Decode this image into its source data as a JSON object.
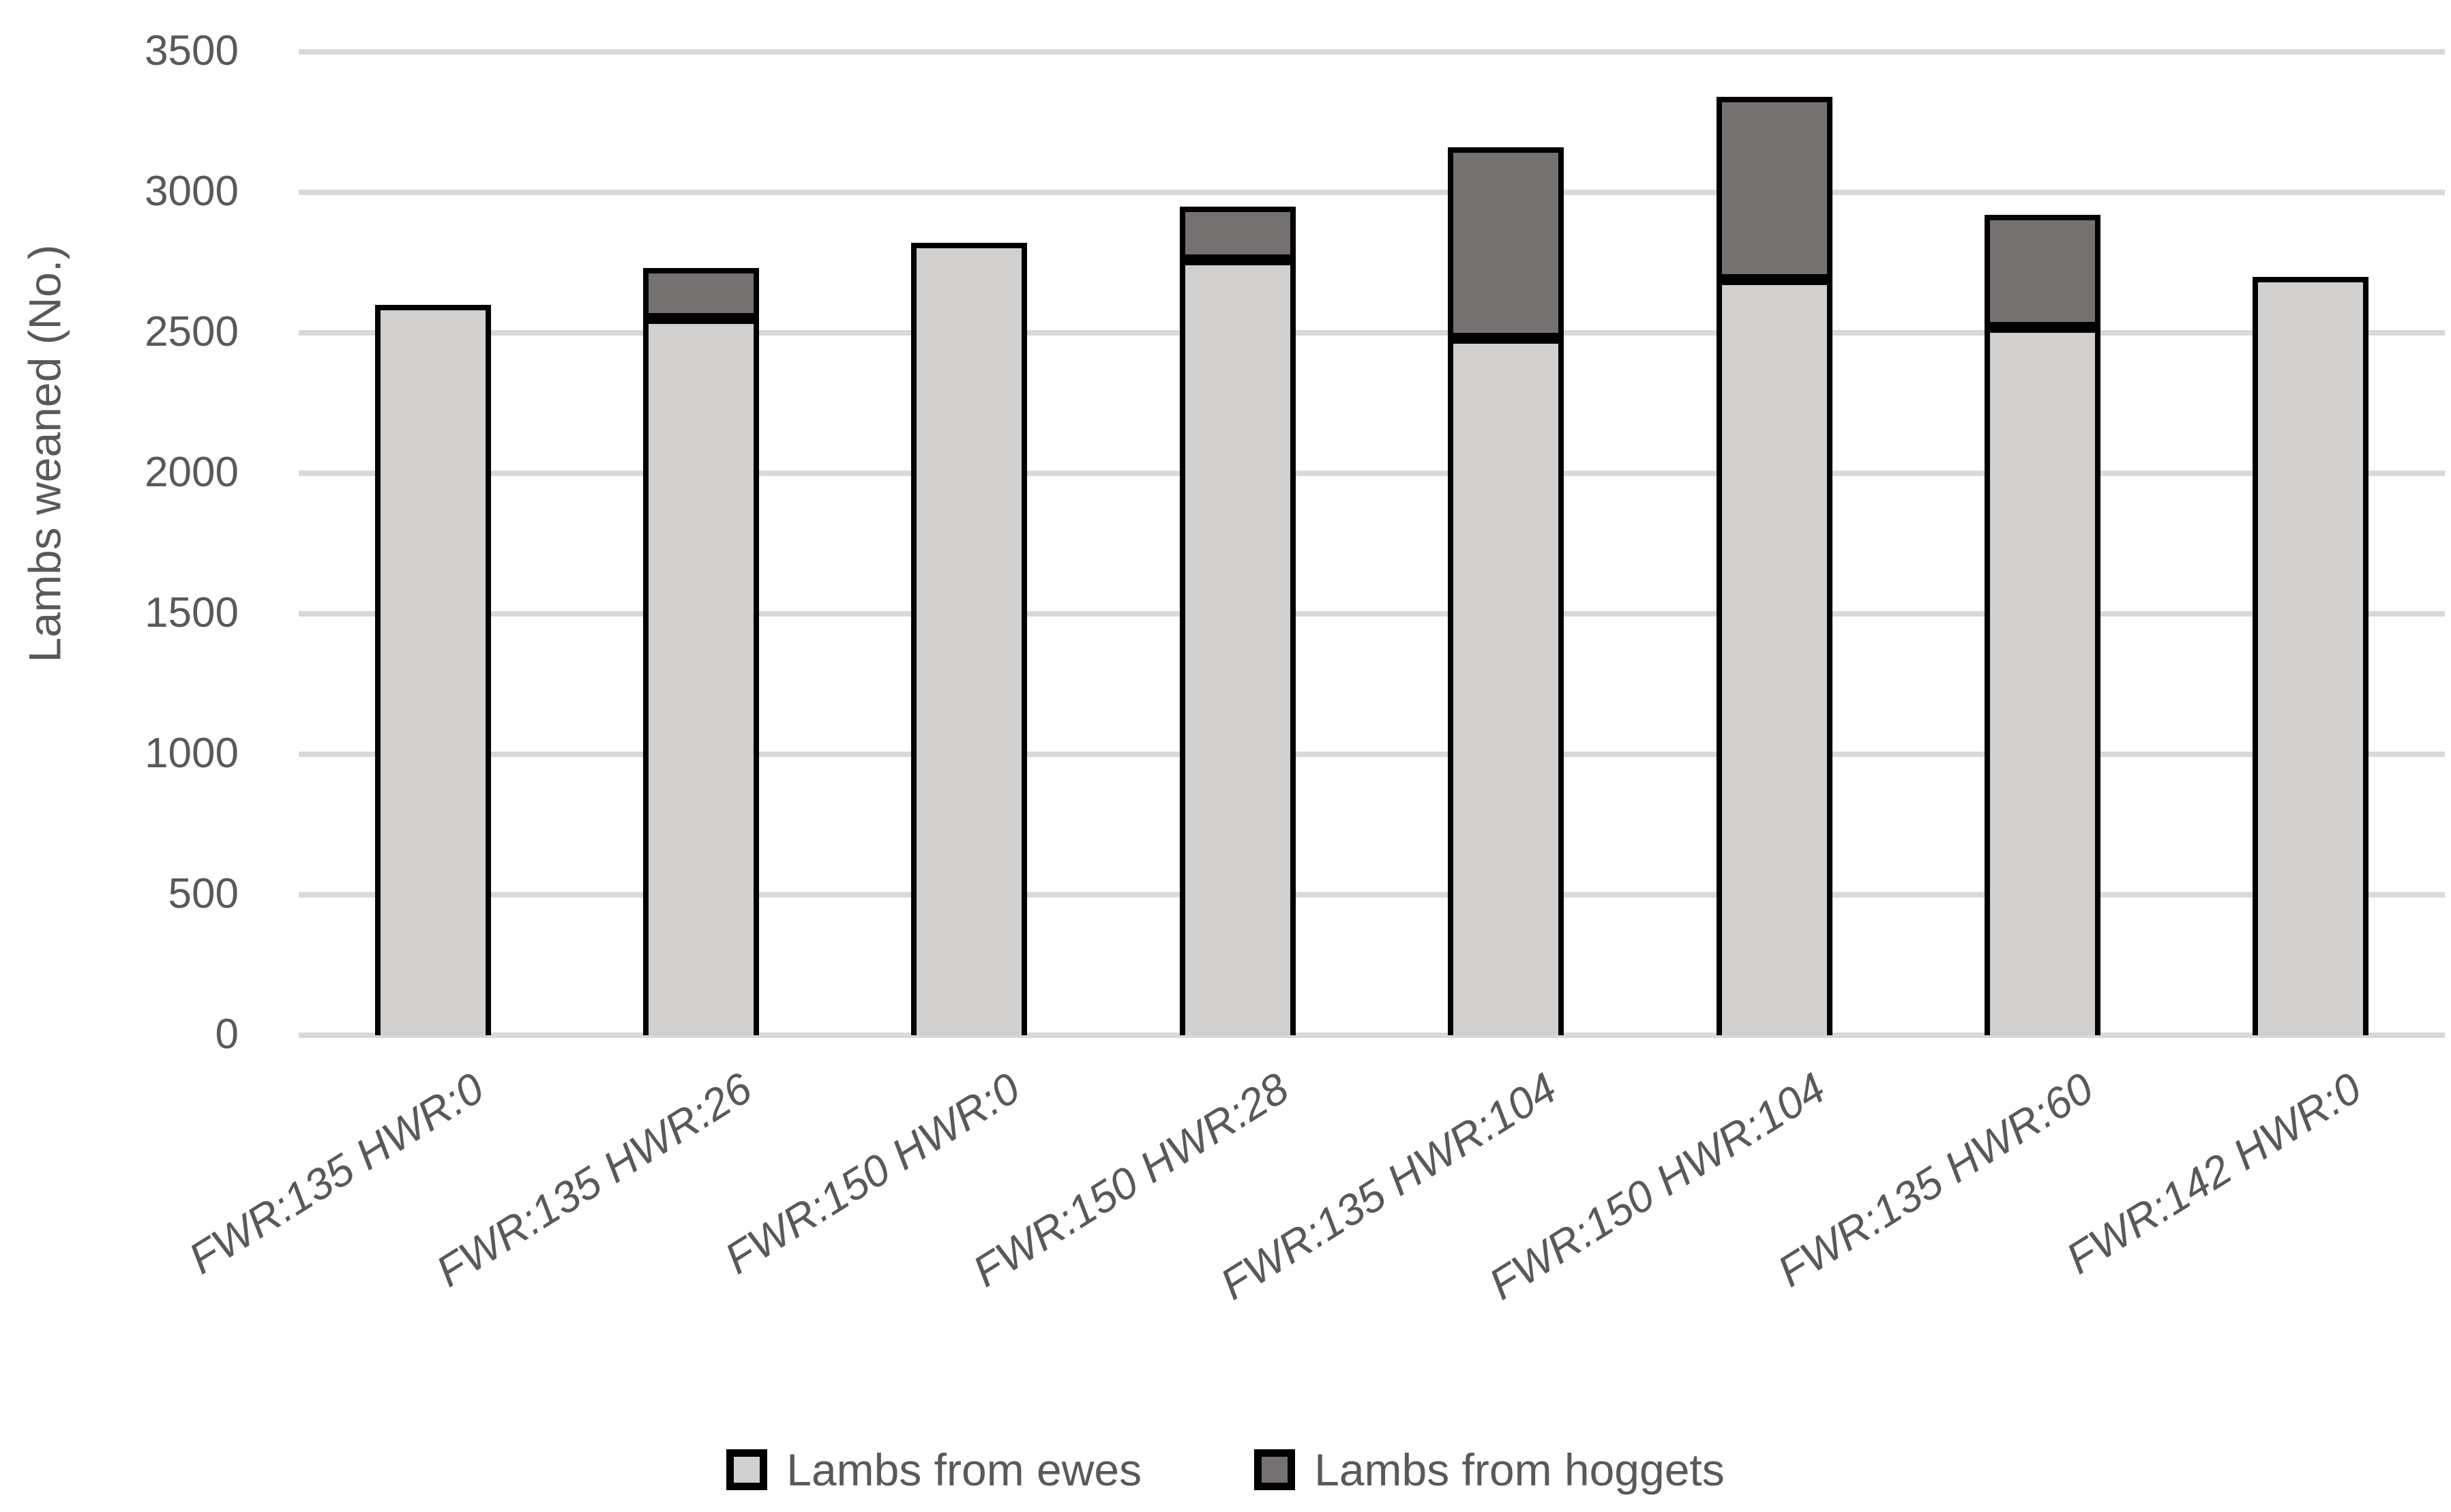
{
  "chart_data": {
    "type": "bar",
    "stacked": true,
    "title": "",
    "xlabel": "",
    "ylabel": "Lambs weaned (No.)",
    "categories": [
      "FWR:135 HWR:0",
      "FWR:135 HWR:26",
      "FWR:150 HWR:0",
      "FWR:150 HWR:28",
      "FWR:135 HWR:104",
      "FWR:150 HWR:104",
      "FWR:135 HWR:60",
      "FWR:142 HWR:0"
    ],
    "series": [
      {
        "name": "Lambs from ewes",
        "color": "#d2cfcf",
        "values": [
          2600,
          2550,
          2820,
          2760,
          2480,
          2690,
          2520,
          2700
        ]
      },
      {
        "name": "Lambs from hoggets",
        "color": "#767171",
        "values": [
          0,
          180,
          0,
          190,
          680,
          650,
          400,
          0
        ]
      }
    ],
    "ylim": [
      0,
      3500
    ],
    "ytick_step": 500,
    "ytick_labels": [
      "3500",
      "3000",
      "2500",
      "2000",
      "1500",
      "1000",
      "500",
      "0"
    ],
    "grid": true,
    "gridline_color": "#d9d9d9",
    "bar_border_color": "#000000",
    "text_color": "#595959",
    "legend_position": "bottom"
  }
}
